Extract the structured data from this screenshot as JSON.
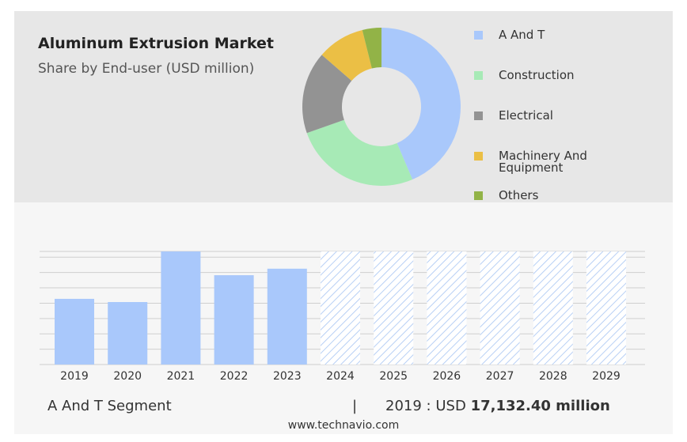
{
  "chart_data": [
    {
      "type": "pie",
      "title": "Aluminum Extrusion Market",
      "subtitle": "Share by End-user (USD million)",
      "categories": [
        "A And T",
        "Construction",
        "Electrical",
        "Machinery And Equipment",
        "Others"
      ],
      "values": [
        43.6,
        26,
        16.8,
        9.7,
        3.9
      ],
      "colors": [
        "#a9c8fb",
        "#a7eab6",
        "#939393",
        "#ebbf45",
        "#92b347"
      ]
    },
    {
      "type": "bar",
      "categories": [
        "2019",
        "2020",
        "2021",
        "2022",
        "2023",
        "2024",
        "2025",
        "2026",
        "2027",
        "2028",
        "2029"
      ],
      "values": [
        17132.4,
        16300,
        29500,
        23300,
        25000,
        null,
        null,
        null,
        null,
        null,
        null
      ],
      "color": "#a9c8fb",
      "ylim": [
        0,
        29500
      ],
      "yticks": [
        0,
        4000,
        8000,
        12000,
        16000,
        20000,
        24000,
        28000
      ],
      "grid": true
    }
  ],
  "summary": {
    "segment": "A And T Segment",
    "divider": "|",
    "year": "2019",
    "separator": ":",
    "currency": "USD",
    "value": "17,132.40 million"
  },
  "source": "www.technavio.com"
}
